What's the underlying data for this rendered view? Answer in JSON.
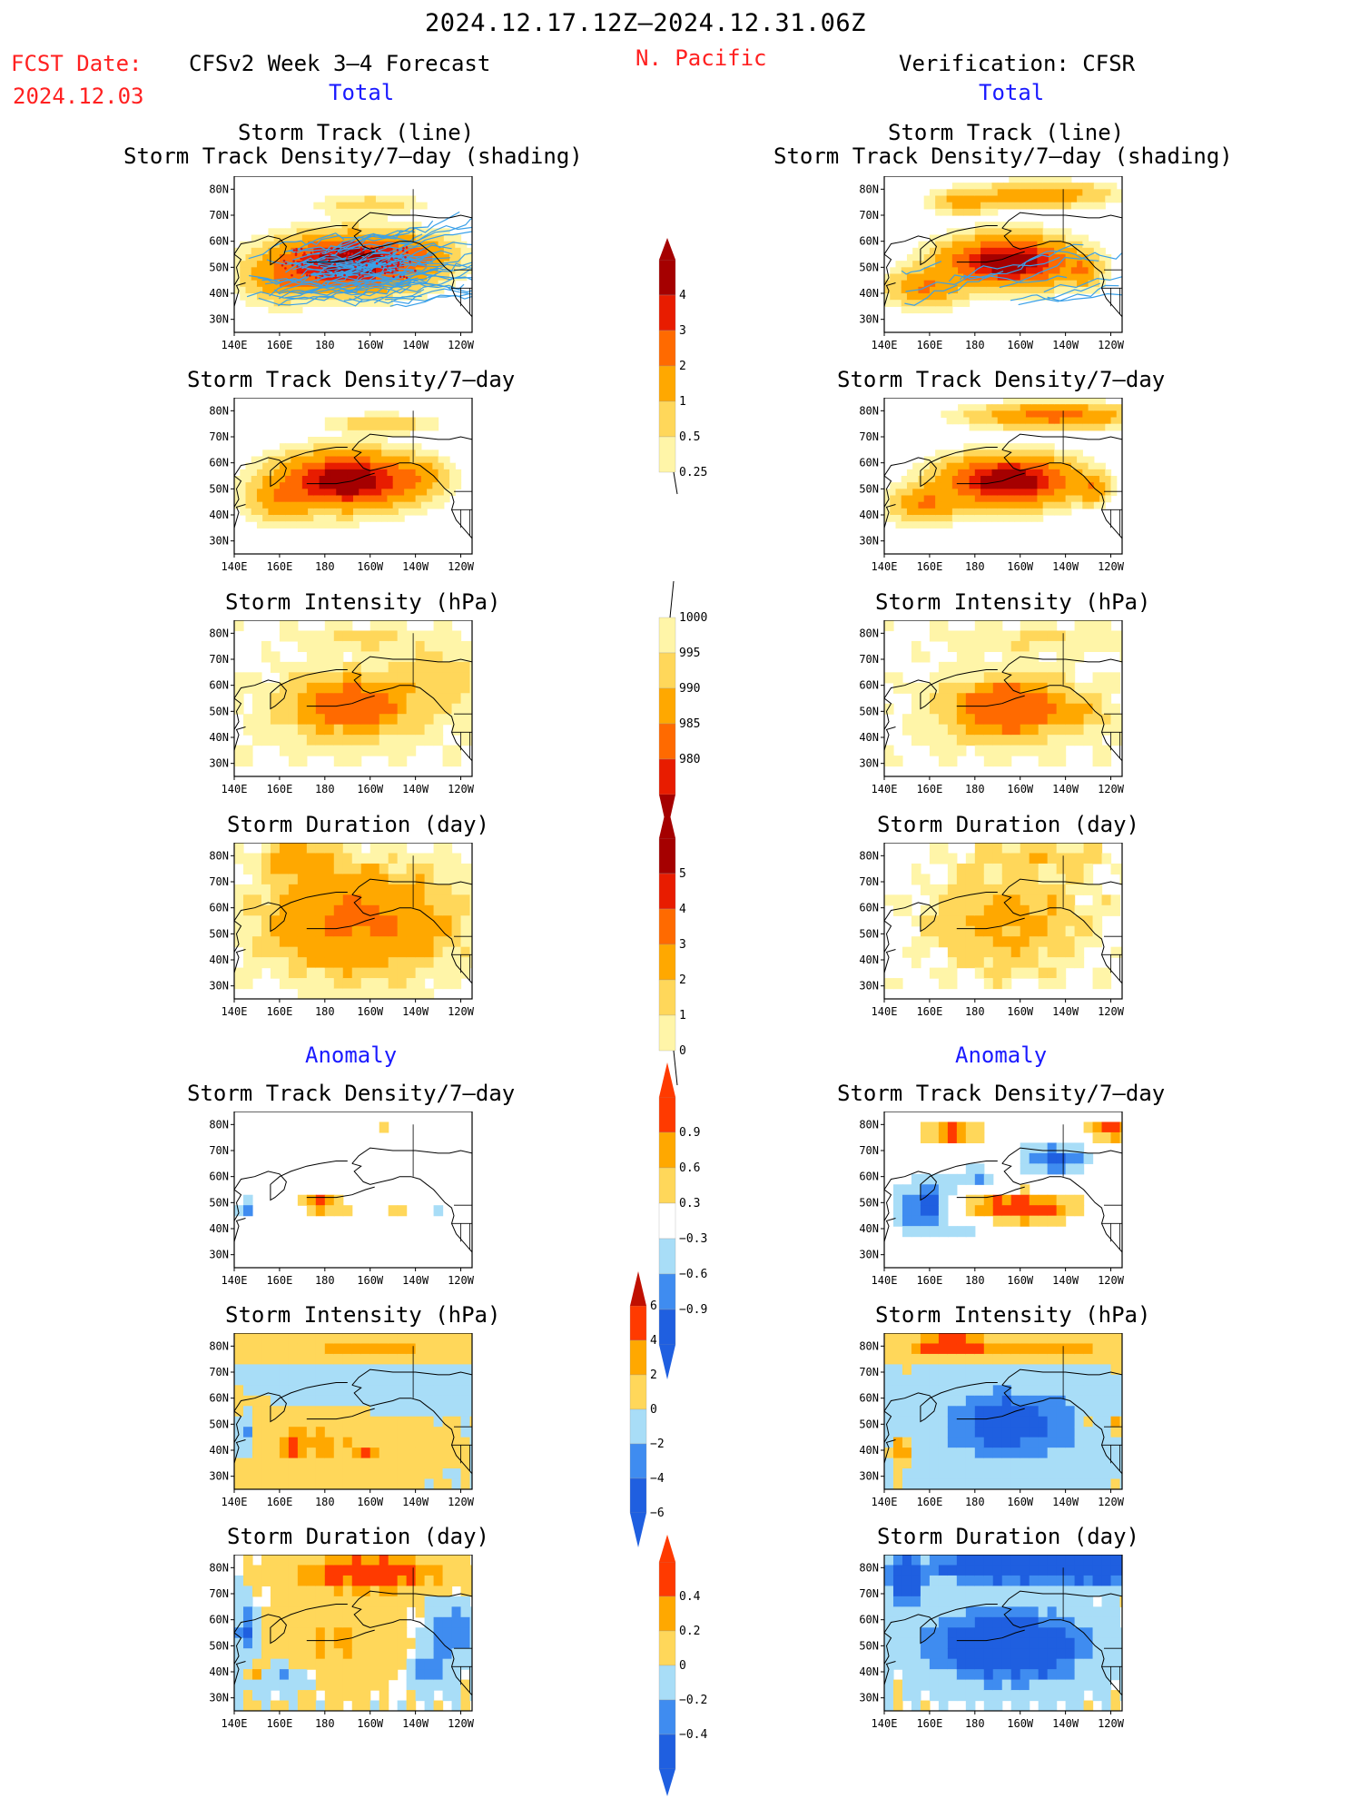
{
  "header": {
    "period": "2024.12.17.12Z–2024.12.31.06Z",
    "fcst_label": "FCST Date:",
    "fcst_date": "2024.12.03",
    "left_model": "CFSv2 Week 3–4 Forecast",
    "region": "N. Pacific",
    "right_model": "Verification: CFSR",
    "total_left": "Total",
    "total_right": "Total",
    "anomaly_left": "Anomaly",
    "anomaly_right": "Anomaly"
  },
  "panel_titles": {
    "track_line": "Storm Track (line)",
    "track_shading": "Storm Track Density/7–day (shading)",
    "density": "Storm Track Density/7–day",
    "intensity": "Storm Intensity (hPa)",
    "duration": "Storm Duration (day)"
  },
  "axes": {
    "lon_ticks": [
      "140E",
      "160E",
      "180",
      "160W",
      "140W",
      "120W"
    ],
    "lat_ticks": [
      "80N",
      "70N",
      "60N",
      "50N",
      "40N",
      "30N"
    ]
  },
  "colorbars": {
    "density_total": [
      "0.25",
      "0.5",
      "1",
      "2",
      "3",
      "4"
    ],
    "intensity_total": [
      "1000",
      "995",
      "990",
      "985",
      "980"
    ],
    "duration_total": [
      "0",
      "1",
      "2",
      "3",
      "4",
      "5"
    ],
    "density_anom": [
      "0.9",
      "0.6",
      "0.3",
      "−0.3",
      "−0.6",
      "−0.9"
    ],
    "intensity_anom": [
      "6",
      "4",
      "2",
      "0",
      "−2",
      "−4",
      "−6"
    ],
    "duration_anom": [
      "0.4",
      "0.2",
      "0",
      "−0.2",
      "−0.4"
    ]
  },
  "colors": {
    "warm": [
      "#fff5a8",
      "#ffd75a",
      "#ffa800",
      "#ff6a00",
      "#e81c00",
      "#a50000"
    ],
    "anom": [
      "#1f5fe0",
      "#3f8cf0",
      "#a8ddf7",
      "#ffffff",
      "#ffd75a",
      "#ffa800",
      "#ff3a00"
    ],
    "track_line": "#3aa0e8",
    "coast": "#000000"
  },
  "chart_data": [
    {
      "type": "heatmap",
      "title": "Storm Track (line) / Storm Track Density/7–day (shading)",
      "source": "CFSv2",
      "field": "total_density_with_tracks",
      "levels": [
        0.25,
        0.5,
        1,
        2,
        3,
        4
      ],
      "pattern": "max 4+ over 45–58N, 165E–150W; tracks spread 30–80N"
    },
    {
      "type": "heatmap",
      "title": "Storm Track (line) / Storm Track Density/7–day (shading)",
      "source": "CFSR",
      "field": "total_density_with_tracks",
      "levels": [
        0.25,
        0.5,
        1,
        2,
        3,
        4
      ],
      "pattern": "max 4+ over 45–60N, 170E–140W; secondary band 70–80N"
    },
    {
      "type": "heatmap",
      "title": "Storm Track Density/7–day",
      "source": "CFSv2",
      "field": "total_density",
      "levels": [
        0.25,
        0.5,
        1,
        2,
        3,
        4
      ]
    },
    {
      "type": "heatmap",
      "title": "Storm Track Density/7–day",
      "source": "CFSR",
      "field": "total_density",
      "levels": [
        0.25,
        0.5,
        1,
        2,
        3,
        4
      ]
    },
    {
      "type": "heatmap",
      "title": "Storm Intensity (hPa)",
      "source": "CFSv2",
      "field": "total_intensity",
      "levels": [
        1000,
        995,
        990,
        985,
        980
      ]
    },
    {
      "type": "heatmap",
      "title": "Storm Intensity (hPa)",
      "source": "CFSR",
      "field": "total_intensity",
      "levels": [
        1000,
        995,
        990,
        985,
        980
      ]
    },
    {
      "type": "heatmap",
      "title": "Storm Duration (day)",
      "source": "CFSv2",
      "field": "total_duration",
      "levels": [
        0,
        1,
        2,
        3,
        4,
        5
      ]
    },
    {
      "type": "heatmap",
      "title": "Storm Duration (day)",
      "source": "CFSR",
      "field": "total_duration",
      "levels": [
        0,
        1,
        2,
        3,
        4,
        5
      ]
    },
    {
      "type": "heatmap",
      "title": "Storm Track Density/7–day",
      "source": "CFSv2",
      "field": "anomaly_density",
      "levels": [
        -0.9,
        -0.6,
        -0.3,
        0.3,
        0.6,
        0.9
      ]
    },
    {
      "type": "heatmap",
      "title": "Storm Track Density/7–day",
      "source": "CFSR",
      "field": "anomaly_density",
      "levels": [
        -0.9,
        -0.6,
        -0.3,
        0.3,
        0.6,
        0.9
      ]
    },
    {
      "type": "heatmap",
      "title": "Storm Intensity (hPa)",
      "source": "CFSv2",
      "field": "anomaly_intensity",
      "levels": [
        -6,
        -4,
        -2,
        0,
        2,
        4,
        6
      ]
    },
    {
      "type": "heatmap",
      "title": "Storm Intensity (hPa)",
      "source": "CFSR",
      "field": "anomaly_intensity",
      "levels": [
        -6,
        -4,
        -2,
        0,
        2,
        4,
        6
      ]
    },
    {
      "type": "heatmap",
      "title": "Storm Duration (day)",
      "source": "CFSv2",
      "field": "anomaly_duration",
      "levels": [
        -0.4,
        -0.2,
        0,
        0.2,
        0.4
      ]
    },
    {
      "type": "heatmap",
      "title": "Storm Duration (day)",
      "source": "CFSR",
      "field": "anomaly_duration",
      "levels": [
        -0.4,
        -0.2,
        0,
        0.2,
        0.4
      ]
    }
  ]
}
